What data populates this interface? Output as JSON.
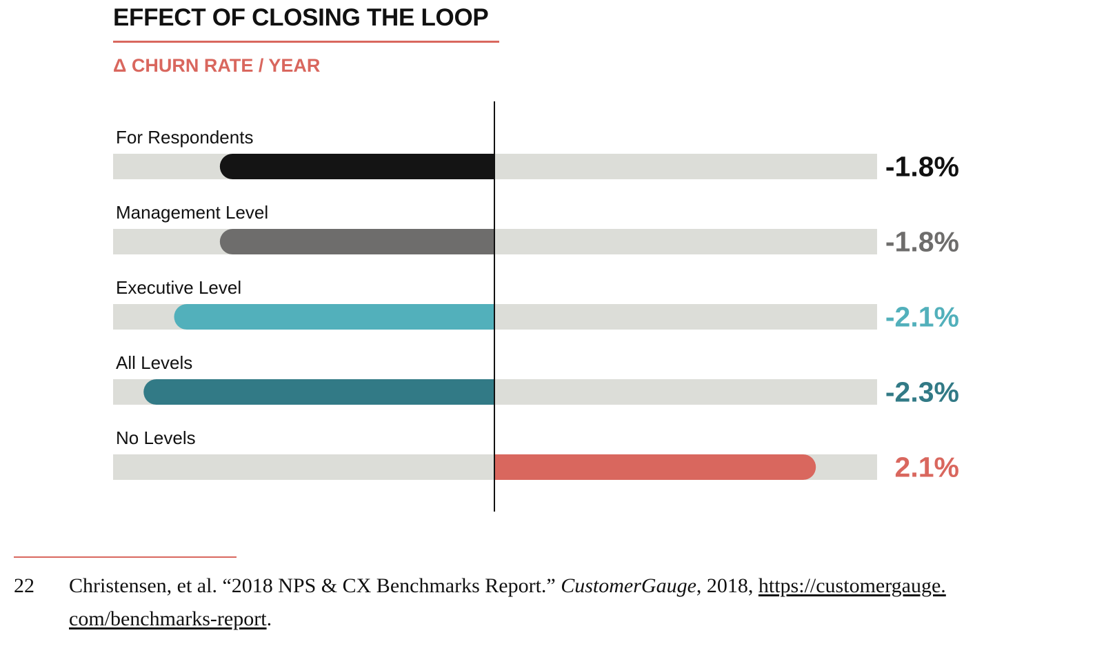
{
  "colors": {
    "accent": "#d9675e",
    "track": "#dcddd8",
    "axis": "#111111"
  },
  "chart_data": {
    "type": "bar",
    "orientation": "horizontal",
    "title": "EFFECT OF CLOSING THE LOOP",
    "subtitle": "Δ CHURN RATE / YEAR",
    "xlim": [
      -2.5,
      2.5
    ],
    "categories": [
      "For Respondents",
      "Management Level",
      "Executive Level",
      "All Levels",
      "No Levels"
    ],
    "values": [
      -1.8,
      -1.8,
      -2.1,
      -2.3,
      2.1
    ],
    "value_labels": [
      "-1.8%",
      "-1.8%",
      "-2.1%",
      "-2.3%",
      "2.1%"
    ],
    "bar_colors": [
      "#141414",
      "#6e6d6c",
      "#52b0bb",
      "#327a86",
      "#d9675e"
    ],
    "label_colors": [
      "#111111",
      "#6e6d6c",
      "#52b0bb",
      "#327a86",
      "#d9675e"
    ]
  },
  "footnote": {
    "number": "22",
    "text_before": "Christensen, et al. “2018 NPS & CX Benchmarks Report.” ",
    "source": "CustomerGauge",
    "text_middle": ", 2018, ",
    "link_line1": "https://customergauge.",
    "link_line2": "com/benchmarks-report",
    "text_after": "."
  }
}
